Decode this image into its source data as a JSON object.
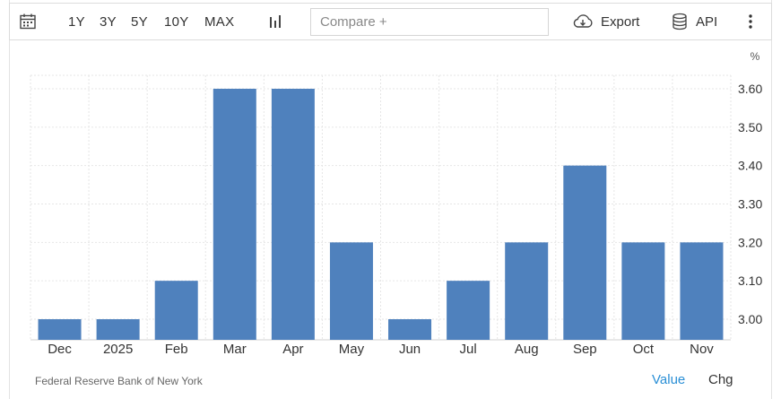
{
  "toolbar": {
    "ranges": [
      "1Y",
      "3Y",
      "5Y",
      "10Y",
      "MAX"
    ],
    "compare_placeholder": "Compare +",
    "export_label": "Export",
    "api_label": "API"
  },
  "chart_data": {
    "type": "bar",
    "categories": [
      "Dec",
      "2025",
      "Feb",
      "Mar",
      "Apr",
      "May",
      "Jun",
      "Jul",
      "Aug",
      "Sep",
      "Oct",
      "Nov"
    ],
    "values": [
      3.0,
      3.0,
      3.1,
      3.6,
      3.6,
      3.2,
      3.0,
      3.1,
      3.2,
      3.4,
      3.2,
      3.2
    ],
    "yticks": [
      "3.00",
      "3.10",
      "3.20",
      "3.30",
      "3.40",
      "3.50",
      "3.60"
    ],
    "unit": "%",
    "ylim": [
      2.95,
      3.65
    ],
    "grid": true,
    "bar_color": "#4f81bd"
  },
  "footer": {
    "source": "Federal Reserve Bank of New York",
    "value_tab": "Value",
    "chg_tab": "Chg",
    "active_color": "#2a8fd6"
  }
}
